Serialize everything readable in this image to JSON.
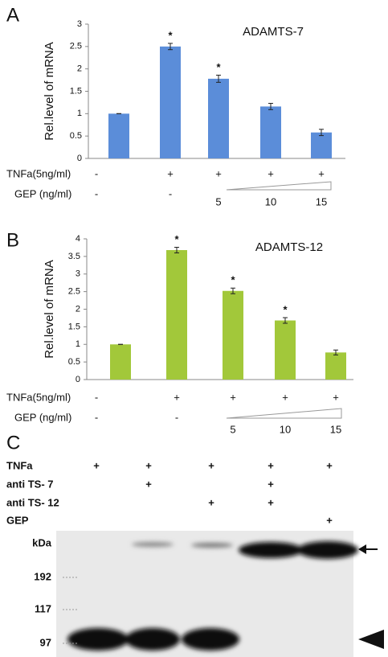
{
  "panel_labels": [
    "A",
    "B",
    "C"
  ],
  "chart_data": [
    {
      "type": "bar",
      "title": "ADAMTS-7",
      "y_label": "Rel.level of mRNA",
      "color": "#5b8dd9",
      "values": [
        1,
        2.5,
        1.78,
        1.16,
        0.58
      ],
      "errors": [
        0,
        0.07,
        0.08,
        0.07,
        0.07
      ],
      "significance": [
        null,
        "*",
        "*",
        null,
        null
      ],
      "ylim": [
        0,
        3
      ],
      "yticks": [
        0,
        0.5,
        1,
        1.5,
        2,
        2.5,
        3
      ],
      "treatments": [
        {
          "label": "TNFa(5ng/ml)",
          "values": [
            "-",
            "+",
            "+",
            "+",
            "+"
          ]
        },
        {
          "label": "GEP (ng/ml)",
          "values": [
            "-",
            "-",
            "5",
            "10",
            "15"
          ]
        }
      ]
    },
    {
      "type": "bar",
      "title": "ADAMTS-12",
      "y_label": "Rel.level of mRNA",
      "color": "#a2c83a",
      "values": [
        1,
        3.68,
        2.52,
        1.68,
        0.77
      ],
      "errors": [
        0,
        0.08,
        0.08,
        0.08,
        0.07
      ],
      "significance": [
        null,
        "*",
        "*",
        "*",
        null
      ],
      "ylim": [
        0,
        4
      ],
      "yticks": [
        0,
        0.5,
        1,
        1.5,
        2,
        2.5,
        3,
        3.5,
        4
      ],
      "treatments": [
        {
          "label": "TNFa(5ng/ml)",
          "values": [
            "-",
            "+",
            "+",
            "+",
            "+"
          ]
        },
        {
          "label": "GEP (ng/ml)",
          "values": [
            "-",
            "-",
            "5",
            "10",
            "15"
          ]
        }
      ]
    }
  ],
  "blot": {
    "rows": [
      {
        "label": "TNFa",
        "lanes": [
          "+",
          "+",
          "+",
          "+",
          "+"
        ]
      },
      {
        "label": "anti TS- 7",
        "lanes": [
          null,
          "+",
          null,
          "+",
          null
        ]
      },
      {
        "label": "anti TS- 12",
        "lanes": [
          null,
          null,
          "+",
          "+",
          null
        ]
      },
      {
        "label": "GEP",
        "lanes": [
          null,
          null,
          null,
          null,
          "+"
        ]
      }
    ],
    "markers": [
      "kDa",
      "192",
      "117",
      "97"
    ]
  }
}
